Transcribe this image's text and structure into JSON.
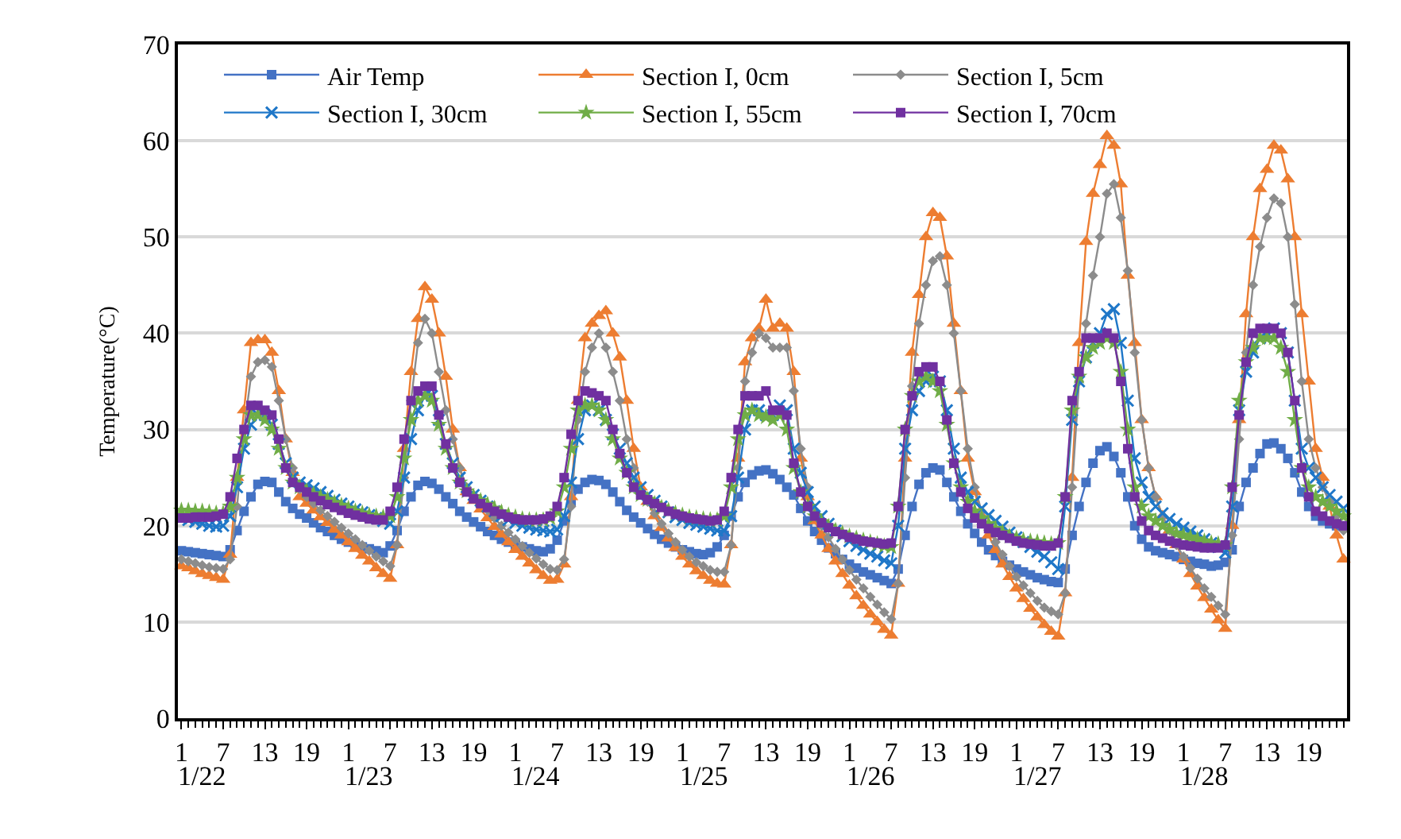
{
  "chart_data": {
    "type": "line",
    "ylabel": "Temperature(°C)",
    "ylim": [
      0,
      70
    ],
    "yticks": [
      0,
      10,
      20,
      30,
      40,
      50,
      60,
      70
    ],
    "grid": "y",
    "legend": "top",
    "categories": [
      "1",
      null,
      null,
      null,
      null,
      null,
      "7",
      null,
      null,
      null,
      null,
      null,
      "13",
      null,
      null,
      null,
      null,
      null,
      "19",
      null,
      null,
      null,
      null,
      null,
      "1",
      null,
      null,
      null,
      null,
      null,
      "7",
      null,
      null,
      null,
      null,
      null,
      "13",
      null,
      null,
      null,
      null,
      null,
      "19",
      null,
      null,
      null,
      null,
      null,
      "1",
      null,
      null,
      null,
      null,
      null,
      "7",
      null,
      null,
      null,
      null,
      null,
      "13",
      null,
      null,
      null,
      null,
      null,
      "19",
      null,
      null,
      null,
      null,
      null,
      "1",
      null,
      null,
      null,
      null,
      null,
      "7",
      null,
      null,
      null,
      null,
      null,
      "13",
      null,
      null,
      null,
      null,
      null,
      "19",
      null,
      null,
      null,
      null,
      null,
      "1",
      null,
      null,
      null,
      null,
      null,
      "7",
      null,
      null,
      null,
      null,
      null,
      "13",
      null,
      null,
      null,
      null,
      null,
      "19",
      null,
      null,
      null,
      null,
      null,
      "1",
      null,
      null,
      null,
      null,
      null,
      "7",
      null,
      null,
      null,
      null,
      null,
      "13",
      null,
      null,
      null,
      null,
      null,
      "19",
      null,
      null,
      null,
      null,
      null,
      "1",
      null,
      null,
      null,
      null,
      null,
      "7",
      null,
      null,
      null,
      null,
      null,
      "13",
      null,
      null,
      null,
      null,
      null,
      "19",
      null,
      null,
      null,
      null,
      null
    ],
    "annotations": [
      "1/22",
      "1/23",
      "1/24",
      "1/25",
      "1/26",
      "1/27",
      "1/28"
    ],
    "series": [
      {
        "name": "Air Temp",
        "color": "#4472c4",
        "marker": "square",
        "values": [
          17.4,
          17.3,
          17.2,
          17.1,
          17.0,
          16.9,
          16.8,
          17.5,
          19.5,
          21.5,
          23,
          24.3,
          24.6,
          24.5,
          23.5,
          22.5,
          21.8,
          21.2,
          20.8,
          20.3,
          19.8,
          19.4,
          19.0,
          18.6,
          18.3,
          18.0,
          17.8,
          17.6,
          17.4,
          17.2,
          17.9,
          19.5,
          21.5,
          23,
          24.2,
          24.6,
          24.4,
          23.8,
          23,
          22.3,
          21.5,
          20.9,
          20.4,
          19.9,
          19.4,
          19.0,
          18.6,
          18.3,
          18.0,
          17.8,
          17.6,
          17.4,
          17.3,
          17.6,
          18.5,
          20.5,
          22.5,
          23.8,
          24.5,
          24.8,
          24.7,
          24.3,
          23.5,
          22.5,
          21.6,
          20.9,
          20.3,
          19.7,
          19.1,
          18.6,
          18.2,
          17.8,
          17.5,
          17.3,
          17.1,
          17.0,
          17.2,
          17.8,
          19.0,
          21,
          23,
          24.5,
          25.3,
          25.7,
          25.8,
          25.4,
          24.8,
          24,
          23.2,
          21.8,
          20.5,
          19.4,
          18.5,
          17.7,
          17.1,
          16.5,
          16.0,
          15.6,
          15.2,
          14.9,
          14.6,
          14.3,
          14.0,
          15.5,
          19,
          22,
          24.3,
          25.5,
          26,
          25.8,
          24.5,
          23,
          21.5,
          20.2,
          19.2,
          18.3,
          17.5,
          16.9,
          16.3,
          15.9,
          15.5,
          15.2,
          14.9,
          14.6,
          14.4,
          14.2,
          14.1,
          15.5,
          19,
          22,
          24.5,
          26.5,
          27.8,
          28.2,
          27.2,
          25.5,
          23,
          20,
          18.6,
          17.8,
          17.4,
          17.2,
          17.0,
          16.8,
          16.5,
          16.3,
          16.1,
          16.0,
          15.8,
          15.9,
          16.2,
          17.5,
          22,
          24.5,
          26,
          27.5,
          28.5,
          28.6,
          28,
          27,
          25.5,
          23.5,
          22,
          21,
          20.5,
          20.2,
          20.0,
          19.9
        ]
      },
      {
        "name": "Section I, 0cm",
        "color": "#ed7d31",
        "marker": "triangle",
        "values": [
          15.8,
          15.6,
          15.3,
          15.0,
          14.8,
          14.6,
          14.4,
          17,
          25,
          32,
          39,
          39.3,
          39.3,
          38,
          34,
          29,
          25.5,
          23,
          22.3,
          21.6,
          20.9,
          20.3,
          19.6,
          19,
          18.3,
          17.6,
          16.9,
          16.3,
          15.6,
          15,
          14.5,
          18,
          28,
          36,
          41.5,
          44.8,
          43.5,
          40,
          35.5,
          30,
          26,
          23.5,
          22.6,
          21.7,
          20.8,
          19.9,
          19.1,
          18.3,
          17.5,
          16.8,
          16.1,
          15.4,
          14.8,
          14.3,
          14.4,
          16,
          23,
          33,
          39.5,
          41,
          41.8,
          42.3,
          40,
          37.5,
          33,
          28,
          24,
          22.5,
          21,
          19.8,
          18.7,
          17.7,
          16.8,
          16,
          15.3,
          14.8,
          14.3,
          14.0,
          13.9,
          18,
          27,
          37,
          39.5,
          40.5,
          43.5,
          40.5,
          41,
          40.5,
          36,
          27,
          23,
          20.5,
          19,
          17.6,
          16.3,
          15,
          13.8,
          12.7,
          11.7,
          10.8,
          10,
          9.2,
          8.6,
          14,
          27,
          38,
          44,
          50,
          52.5,
          52,
          48,
          41,
          34,
          27,
          23.5,
          21,
          19,
          17.5,
          16,
          14.7,
          13.5,
          12.4,
          11.4,
          10.5,
          9.7,
          9,
          8.5,
          13,
          25,
          39,
          49.5,
          54.5,
          57.5,
          60.5,
          59.5,
          55.5,
          46,
          39,
          31,
          26,
          23,
          21,
          19.5,
          18,
          16.5,
          15,
          13.7,
          12.5,
          11.3,
          10.2,
          9.3,
          20,
          31,
          42,
          50,
          55,
          57,
          59.5,
          59,
          56,
          50,
          42,
          35,
          28,
          25,
          22,
          19,
          16.5
        ]
      },
      {
        "name": "Section I, 5cm",
        "color": "#8c8c8c",
        "marker": "diamond",
        "values": [
          16.5,
          16.3,
          16.1,
          15.9,
          15.7,
          15.6,
          15.5,
          16.5,
          22,
          30,
          35.5,
          37,
          37.2,
          36.5,
          33,
          29,
          26,
          23.8,
          23,
          22.3,
          21.6,
          21,
          20.4,
          19.8,
          19.2,
          18.6,
          18,
          17.4,
          16.8,
          16.3,
          15.8,
          18,
          25,
          33,
          39,
          41.5,
          40,
          36,
          32,
          29,
          26,
          24,
          23.2,
          22.4,
          21.6,
          20.8,
          20,
          19.3,
          18.6,
          17.9,
          17.2,
          16.6,
          16,
          15.5,
          15.4,
          16.5,
          22,
          31,
          36,
          38.5,
          40,
          38.5,
          36,
          33,
          29,
          26,
          23.5,
          22.5,
          21.3,
          20.2,
          19.2,
          18.3,
          17.5,
          16.8,
          16.2,
          15.8,
          15.4,
          15.2,
          15.2,
          18,
          26,
          35,
          38,
          40,
          39.5,
          38.5,
          38.5,
          38.5,
          34,
          28,
          24,
          21.5,
          20,
          18.8,
          17.6,
          16.5,
          15.4,
          14.4,
          13.5,
          12.6,
          11.8,
          11,
          10.3,
          14,
          25,
          34.5,
          41,
          45,
          47.5,
          48,
          45,
          40,
          34,
          28,
          24,
          21.5,
          19.8,
          18.3,
          17,
          15.8,
          14.7,
          13.8,
          13,
          12.2,
          11.5,
          11.1,
          10.8,
          13,
          24,
          35,
          41,
          46,
          50,
          54.5,
          55.5,
          52,
          46.5,
          38,
          31,
          26,
          23,
          21,
          19.5,
          18,
          16.8,
          15.6,
          14.5,
          13.5,
          12.6,
          11.7,
          10.8,
          19,
          29,
          38,
          45,
          49,
          52,
          54,
          53.5,
          50,
          43,
          35,
          29,
          26,
          24,
          22.5,
          21,
          19.5
        ]
      },
      {
        "name": "Section I, 30cm",
        "color": "#1f77c8",
        "marker": "cross",
        "values": [
          20.8,
          20.6,
          20.4,
          20.2,
          20.0,
          19.9,
          20.0,
          21,
          24,
          28,
          30.5,
          31.5,
          31.5,
          30.5,
          28.5,
          26.5,
          25,
          24.5,
          24.2,
          23.9,
          23.5,
          23.1,
          22.7,
          22.3,
          22,
          21.7,
          21.4,
          21.1,
          20.8,
          20.5,
          20.2,
          21.5,
          25,
          29,
          32,
          33.5,
          33.5,
          31,
          28.5,
          26.5,
          25,
          24,
          23.2,
          22.6,
          22,
          21.5,
          21,
          20.6,
          20.3,
          20.0,
          19.8,
          19.6,
          19.5,
          19.4,
          19.6,
          21,
          24.5,
          29,
          32,
          32.5,
          32,
          31,
          29.5,
          28,
          26.5,
          25,
          24,
          23.2,
          22.6,
          22,
          21.4,
          20.9,
          20.6,
          20.3,
          20.1,
          19.9,
          19.7,
          19.5,
          19.5,
          21,
          25,
          30,
          32,
          32,
          31.5,
          31.5,
          32.5,
          32,
          28,
          25.5,
          23.5,
          22,
          21,
          20.2,
          19.5,
          18.9,
          18.4,
          17.9,
          17.5,
          17.1,
          16.8,
          16.4,
          16.1,
          20,
          28,
          32,
          34,
          35,
          35.5,
          35,
          32,
          28,
          25,
          23.5,
          22.5,
          21.8,
          21.1,
          20.5,
          19.9,
          19.3,
          18.8,
          18.3,
          17.8,
          17.3,
          16.8,
          16.2,
          15.5,
          22,
          31,
          35,
          37.5,
          39,
          40,
          42,
          42.5,
          39,
          33,
          27,
          24.5,
          23,
          22,
          21.3,
          20.7,
          20.2,
          19.8,
          19.4,
          19.0,
          18.6,
          18.2,
          17.8,
          17.2,
          22,
          32,
          36,
          38,
          39.5,
          40,
          40.5,
          40,
          38,
          33,
          28,
          26,
          25,
          24,
          23.2,
          22.5,
          21.8
        ]
      },
      {
        "name": "Section I, 55cm",
        "color": "#70ad47",
        "marker": "star",
        "values": [
          21.6,
          21.6,
          21.5,
          21.5,
          21.4,
          21.3,
          21.3,
          22,
          25,
          29,
          31.5,
          31.5,
          31,
          30,
          28,
          26,
          24.5,
          24,
          23.6,
          23.3,
          23,
          22.7,
          22.4,
          22.1,
          21.8,
          21.5,
          21.3,
          21.1,
          21,
          20.9,
          21,
          23,
          27,
          31,
          33,
          33.5,
          33,
          30.5,
          28,
          26,
          24.5,
          23.6,
          23,
          22.6,
          22.2,
          21.8,
          21.4,
          21.1,
          20.9,
          20.7,
          20.6,
          20.6,
          20.6,
          20.8,
          21.5,
          24,
          28,
          32,
          32.5,
          32.5,
          32,
          31,
          29,
          27,
          25.5,
          24,
          23.2,
          22.7,
          22.3,
          21.9,
          21.6,
          21.3,
          21.1,
          20.9,
          20.8,
          20.7,
          20.6,
          20.6,
          21,
          24,
          29,
          31.5,
          32,
          31.5,
          31.3,
          31,
          31.5,
          30,
          26,
          23.5,
          22,
          21,
          20.4,
          19.9,
          19.5,
          19.2,
          18.9,
          18.7,
          18.5,
          18.3,
          18.1,
          17.9,
          17.8,
          22,
          30,
          33.5,
          35,
          35.5,
          35,
          34,
          30.5,
          26.5,
          24,
          22.5,
          21.5,
          20.8,
          20.2,
          19.7,
          19.3,
          18.9,
          18.7,
          18.5,
          18.4,
          18.3,
          18.2,
          18.1,
          18.2,
          23,
          32,
          35.5,
          37.5,
          38.5,
          39,
          39.5,
          39,
          36,
          30,
          24,
          22,
          21,
          20.5,
          20,
          19.6,
          19.2,
          19,
          18.8,
          18.6,
          18.4,
          18.2,
          18.1,
          18.0,
          24,
          33,
          37,
          38.5,
          39.5,
          39.5,
          39.5,
          38.5,
          36,
          31,
          26,
          24,
          23,
          22.5,
          22,
          21.5,
          21
        ]
      },
      {
        "name": "Section I, 70cm",
        "color": "#7030a0",
        "marker": "square",
        "values": [
          20.8,
          20.8,
          20.9,
          20.9,
          20.9,
          21,
          21.2,
          23,
          27,
          30,
          32.5,
          32.5,
          32,
          31.5,
          29,
          26,
          24.5,
          24,
          23.5,
          23,
          22.6,
          22.2,
          21.9,
          21.6,
          21.3,
          21.1,
          20.9,
          20.7,
          20.6,
          20.6,
          21.5,
          24,
          29,
          33,
          34,
          34.5,
          34.5,
          31.5,
          28.5,
          26,
          24.5,
          23.5,
          22.8,
          22.3,
          21.9,
          21.5,
          21.2,
          20.9,
          20.7,
          20.6,
          20.6,
          20.6,
          20.7,
          21,
          22,
          25,
          29.5,
          33,
          34,
          33.8,
          33.5,
          33,
          30,
          27.5,
          25.5,
          24,
          23.2,
          22.7,
          22.3,
          21.9,
          21.5,
          21.2,
          21,
          20.8,
          20.7,
          20.6,
          20.5,
          20.6,
          21.5,
          25,
          30,
          33.5,
          33.5,
          33.5,
          34,
          32,
          32,
          31.5,
          26.5,
          23.5,
          22,
          21,
          20.3,
          19.8,
          19.4,
          19.1,
          18.8,
          18.6,
          18.4,
          18.3,
          18.2,
          18.1,
          18.2,
          22,
          30,
          33.5,
          36,
          36.5,
          36.5,
          35,
          31,
          26.5,
          23.5,
          21.8,
          20.8,
          20.2,
          19.7,
          19.3,
          19,
          18.7,
          18.4,
          18.2,
          18.1,
          18,
          17.9,
          17.9,
          18.2,
          23,
          33,
          36,
          39.5,
          39.5,
          39.5,
          40,
          39.5,
          35,
          28,
          23,
          20.5,
          19.5,
          19,
          18.7,
          18.4,
          18.2,
          18,
          17.9,
          17.8,
          17.7,
          17.7,
          17.7,
          18.0,
          24,
          31.5,
          37,
          40,
          40.5,
          40.5,
          40.5,
          40,
          38,
          33,
          26,
          23,
          21.5,
          21,
          20.5,
          20.2,
          20
        ]
      }
    ]
  }
}
